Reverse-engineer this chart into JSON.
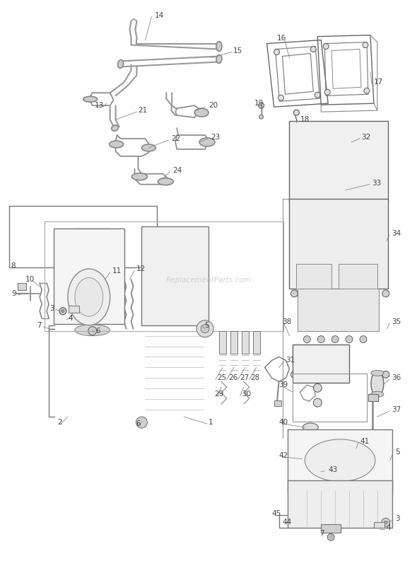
{
  "bg_color": "#ffffff",
  "watermark": "ReplacementParts.com",
  "fig_width": 5.9,
  "fig_height": 7.93,
  "dpi": 100,
  "line_color": "#555555",
  "label_color": "#333333",
  "label_fs": 7.5
}
